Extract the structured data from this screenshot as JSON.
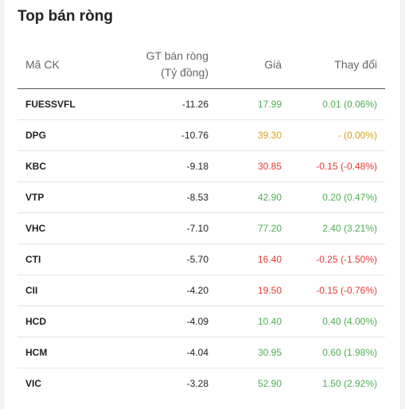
{
  "widget": {
    "title": "Top bán ròng",
    "headers": {
      "symbol": "Mã CK",
      "net_value_line1": "GT bán ròng",
      "net_value_line2": "(Tỷ đồng)",
      "price": "Giá",
      "change": "Thay đổi"
    }
  },
  "colors": {
    "up": "#4caf50",
    "down": "#e53935",
    "reference": "#d4a017"
  },
  "rows": [
    {
      "symbol": "FUESSVFL",
      "net_value": "-11.26",
      "price": "17.99",
      "change": "0.01 (0.06%)",
      "trend": "up"
    },
    {
      "symbol": "DPG",
      "net_value": "-10.76",
      "price": "39.30",
      "change": "- (0.00%)",
      "trend": "ref"
    },
    {
      "symbol": "KBC",
      "net_value": "-9.18",
      "price": "30.85",
      "change": "-0.15 (-0.48%)",
      "trend": "down"
    },
    {
      "symbol": "VTP",
      "net_value": "-8.53",
      "price": "42.90",
      "change": "0.20 (0.47%)",
      "trend": "up"
    },
    {
      "symbol": "VHC",
      "net_value": "-7.10",
      "price": "77.20",
      "change": "2.40 (3.21%)",
      "trend": "up"
    },
    {
      "symbol": "CTI",
      "net_value": "-5.70",
      "price": "16.40",
      "change": "-0.25 (-1.50%)",
      "trend": "down"
    },
    {
      "symbol": "CII",
      "net_value": "-4.20",
      "price": "19.50",
      "change": "-0.15 (-0.76%)",
      "trend": "down"
    },
    {
      "symbol": "HCD",
      "net_value": "-4.09",
      "price": "10.40",
      "change": "0.40 (4.00%)",
      "trend": "up"
    },
    {
      "symbol": "HCM",
      "net_value": "-4.04",
      "price": "30.95",
      "change": "0.60 (1.98%)",
      "trend": "up"
    },
    {
      "symbol": "VIC",
      "net_value": "-3.28",
      "price": "52.90",
      "change": "1.50 (2.92%)",
      "trend": "up"
    }
  ]
}
